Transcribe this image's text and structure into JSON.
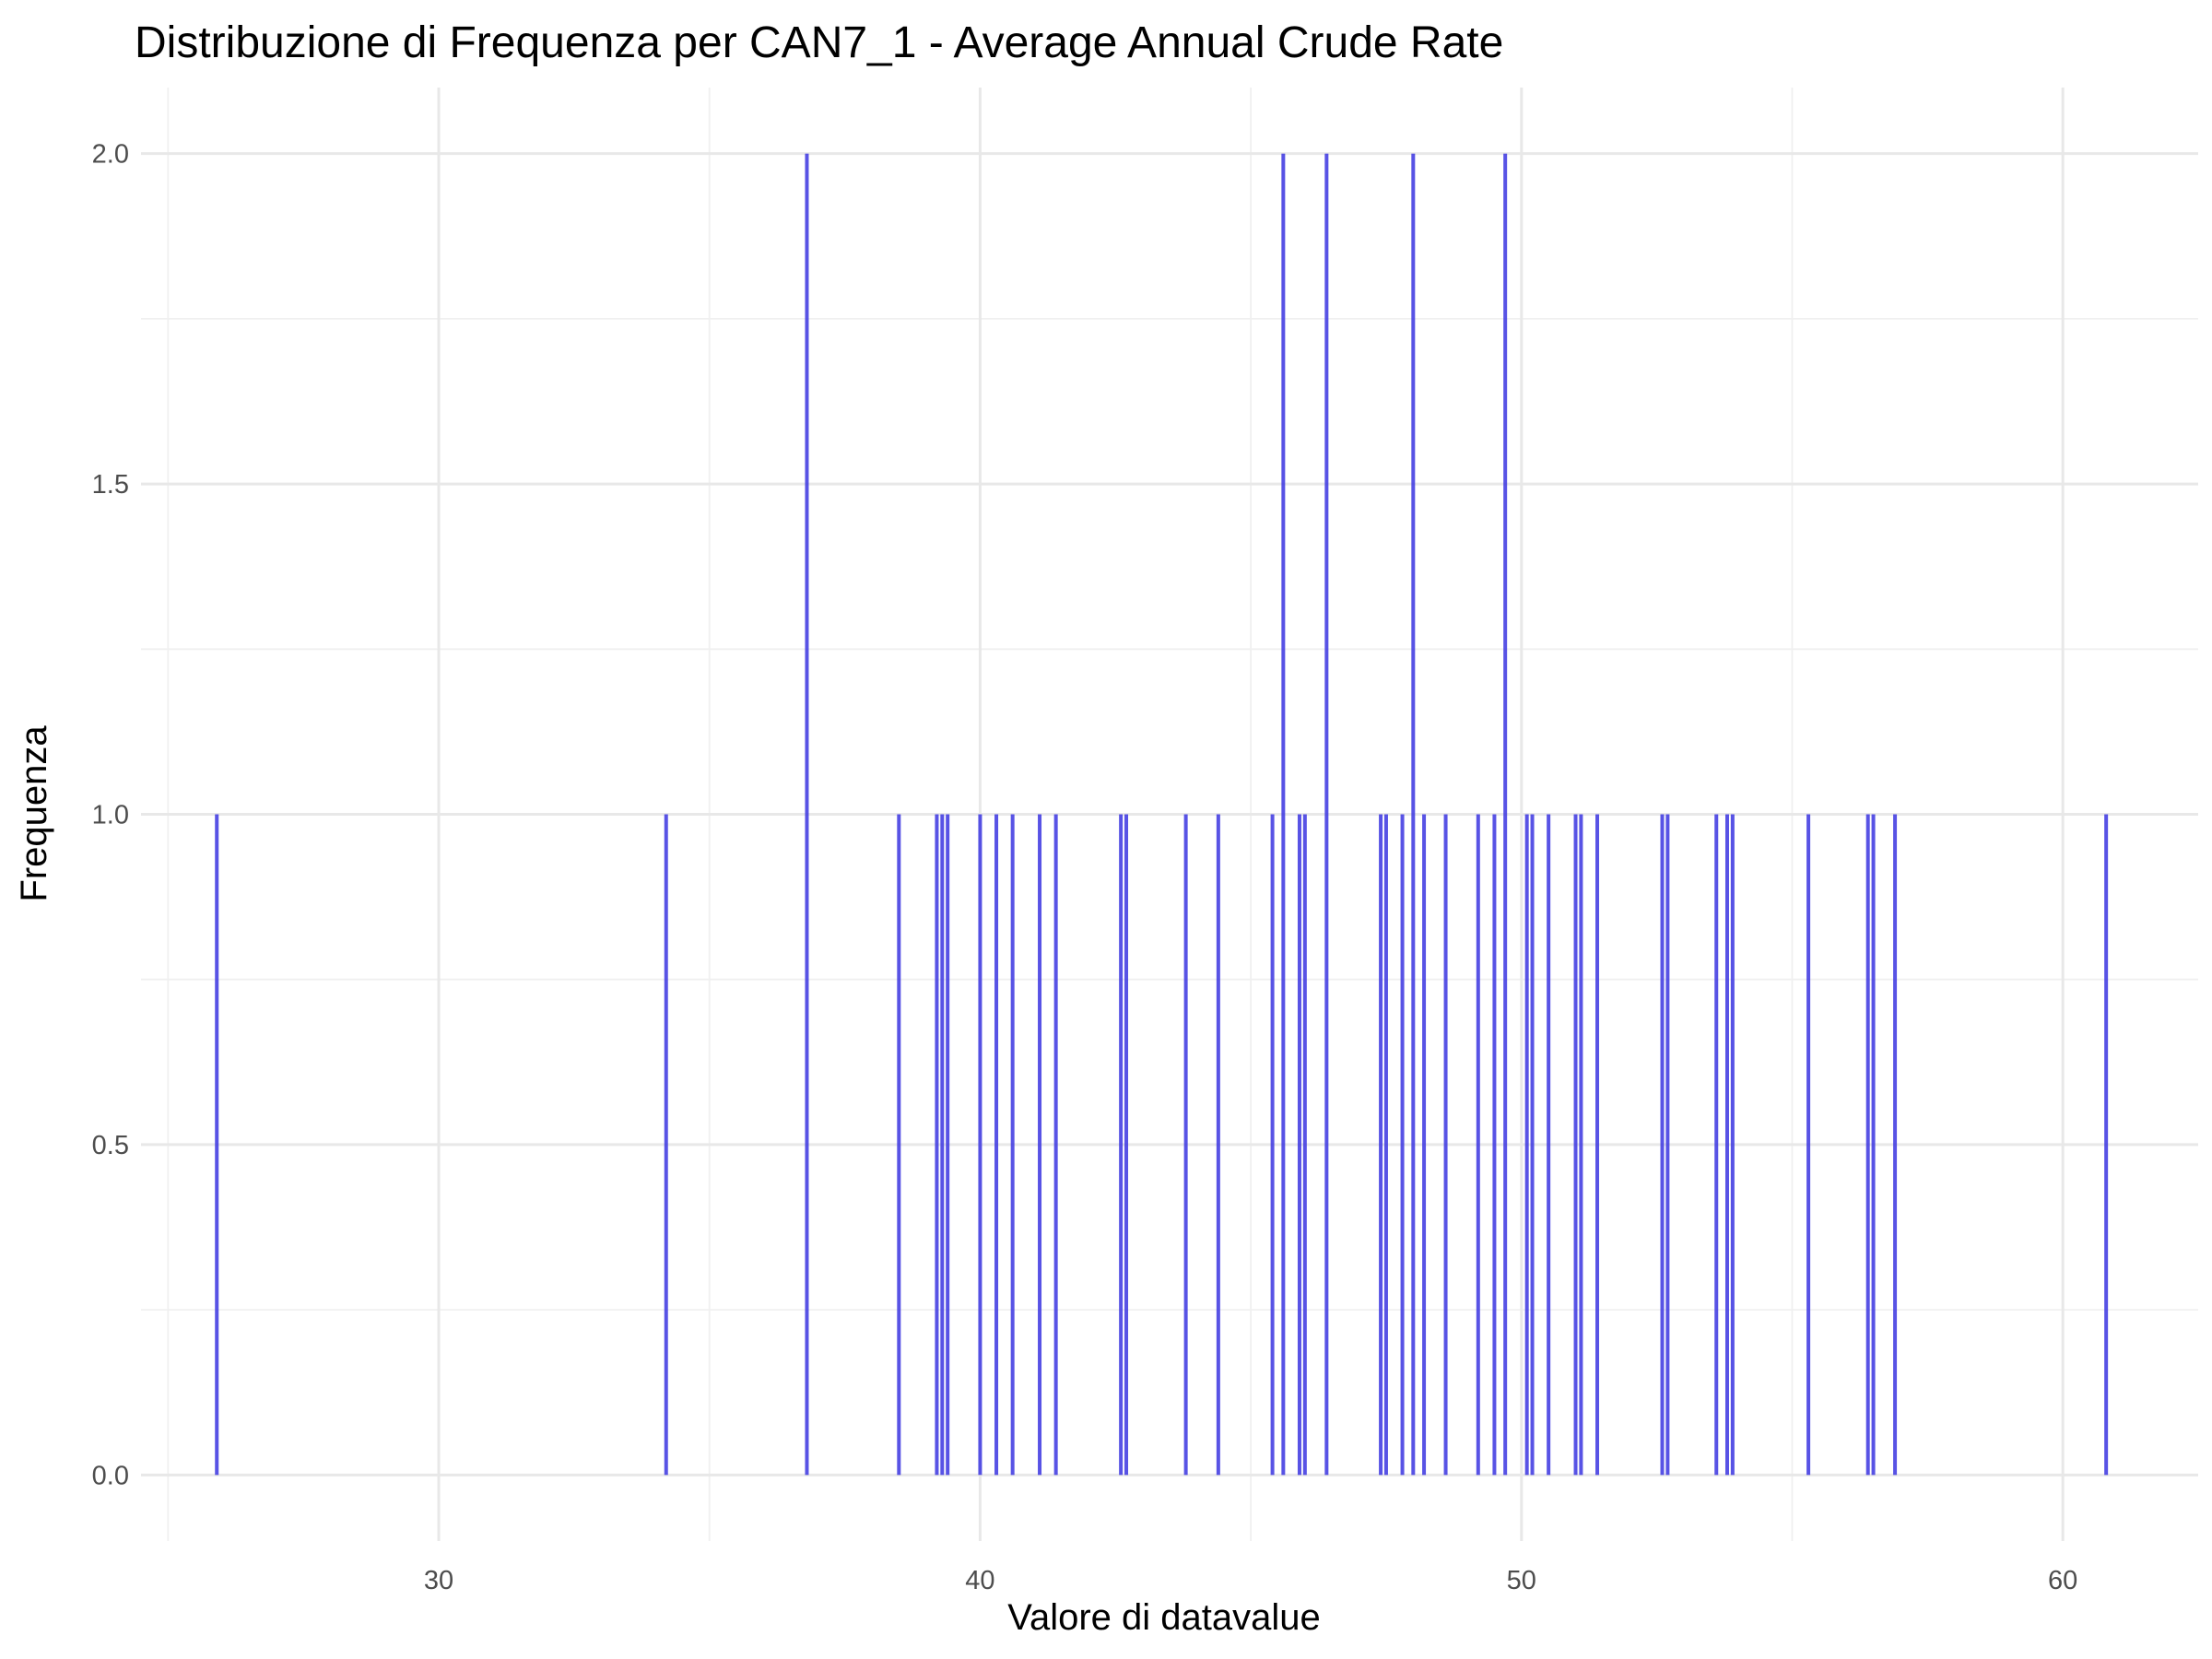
{
  "chart_data": {
    "type": "bar",
    "title": "Distribuzione di Frequenza per CAN7_1 - Average Annual Crude Rate",
    "xlabel": "Valore di datavalue",
    "ylabel": "Frequenza",
    "xlim": [
      24.5,
      62.5
    ],
    "ylim": [
      -0.1,
      2.1
    ],
    "x_ticks": [
      30,
      40,
      50,
      60
    ],
    "x_tick_labels": [
      "30",
      "40",
      "50",
      "60"
    ],
    "y_ticks": [
      0,
      0.5,
      1,
      1.5,
      2
    ],
    "y_tick_labels": [
      "0.0",
      "0.5",
      "1.0",
      "1.5",
      "2.0"
    ],
    "grid": true,
    "bar_color": "#3b35e0",
    "x": [
      25.9,
      34.2,
      36.8,
      38.5,
      39.2,
      39.3,
      39.4,
      40.0,
      40.3,
      40.6,
      41.1,
      41.4,
      42.6,
      42.7,
      43.8,
      44.4,
      45.4,
      45.6,
      45.9,
      46.0,
      46.4,
      47.4,
      47.5,
      47.8,
      48.0,
      48.2,
      48.6,
      49.2,
      49.5,
      49.7,
      50.1,
      50.2,
      50.5,
      51.0,
      51.1,
      51.4,
      52.6,
      52.7,
      53.6,
      53.8,
      53.9,
      55.3,
      56.4,
      56.5,
      56.9,
      60.8
    ],
    "values": [
      1,
      1,
      2,
      1,
      1,
      1,
      1,
      1,
      1,
      1,
      1,
      1,
      1,
      1,
      1,
      1,
      1,
      2,
      1,
      1,
      2,
      1,
      1,
      1,
      2,
      1,
      1,
      1,
      1,
      2,
      1,
      1,
      1,
      1,
      1,
      1,
      1,
      1,
      1,
      1,
      1,
      1,
      1,
      1,
      1,
      1
    ]
  }
}
